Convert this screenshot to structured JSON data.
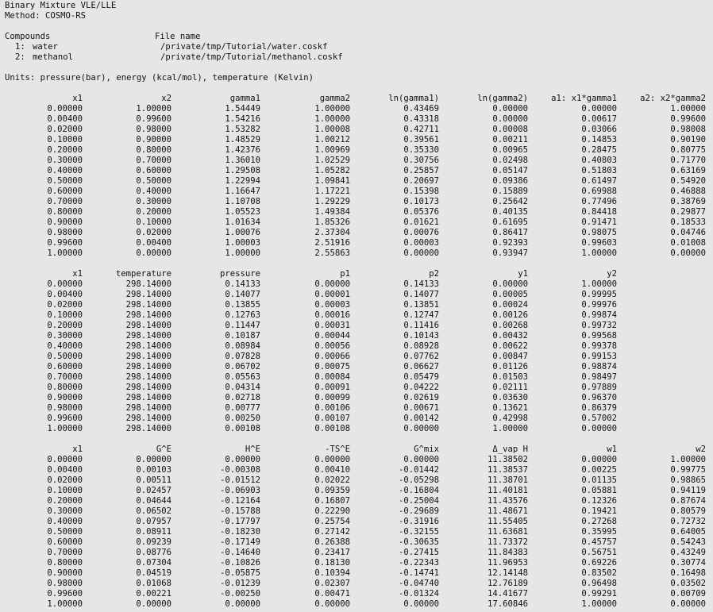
{
  "header": {
    "title": "Binary Mixture VLE/LLE",
    "method": "Method: COSMO-RS",
    "compounds_label": "Compounds",
    "file_name_label": "File name",
    "compounds": [
      {
        "index": "1:",
        "name": "water",
        "file": "/private/tmp/Tutorial/water.coskf"
      },
      {
        "index": "2:",
        "name": "methanol",
        "file": "/private/tmp/Tutorial/methanol.coskf"
      }
    ],
    "units": "Units: pressure(bar), energy (kcal/mol), temperature (Kelvin)"
  },
  "tables": [
    {
      "columns": [
        "x1",
        "x2",
        "gamma1",
        "gamma2",
        "ln(gamma1)",
        "ln(gamma2)",
        "a1: x1*gamma1",
        "a2: x2*gamma2"
      ],
      "rows": [
        [
          "0.00000",
          "1.00000",
          "1.54449",
          "1.00000",
          "0.43469",
          "0.00000",
          "0.00000",
          "1.00000"
        ],
        [
          "0.00400",
          "0.99600",
          "1.54216",
          "1.00000",
          "0.43318",
          "0.00000",
          "0.00617",
          "0.99600"
        ],
        [
          "0.02000",
          "0.98000",
          "1.53282",
          "1.00008",
          "0.42711",
          "0.00008",
          "0.03066",
          "0.98008"
        ],
        [
          "0.10000",
          "0.90000",
          "1.48529",
          "1.00212",
          "0.39561",
          "0.00211",
          "0.14853",
          "0.90190"
        ],
        [
          "0.20000",
          "0.80000",
          "1.42376",
          "1.00969",
          "0.35330",
          "0.00965",
          "0.28475",
          "0.80775"
        ],
        [
          "0.30000",
          "0.70000",
          "1.36010",
          "1.02529",
          "0.30756",
          "0.02498",
          "0.40803",
          "0.71770"
        ],
        [
          "0.40000",
          "0.60000",
          "1.29508",
          "1.05282",
          "0.25857",
          "0.05147",
          "0.51803",
          "0.63169"
        ],
        [
          "0.50000",
          "0.50000",
          "1.22994",
          "1.09841",
          "0.20697",
          "0.09386",
          "0.61497",
          "0.54920"
        ],
        [
          "0.60000",
          "0.40000",
          "1.16647",
          "1.17221",
          "0.15398",
          "0.15889",
          "0.69988",
          "0.46888"
        ],
        [
          "0.70000",
          "0.30000",
          "1.10708",
          "1.29229",
          "0.10173",
          "0.25642",
          "0.77496",
          "0.38769"
        ],
        [
          "0.80000",
          "0.20000",
          "1.05523",
          "1.49384",
          "0.05376",
          "0.40135",
          "0.84418",
          "0.29877"
        ],
        [
          "0.90000",
          "0.10000",
          "1.01634",
          "1.85326",
          "0.01621",
          "0.61695",
          "0.91471",
          "0.18533"
        ],
        [
          "0.98000",
          "0.02000",
          "1.00076",
          "2.37304",
          "0.00076",
          "0.86417",
          "0.98075",
          "0.04746"
        ],
        [
          "0.99600",
          "0.00400",
          "1.00003",
          "2.51916",
          "0.00003",
          "0.92393",
          "0.99603",
          "0.01008"
        ],
        [
          "1.00000",
          "0.00000",
          "1.00000",
          "2.55863",
          "0.00000",
          "0.93947",
          "1.00000",
          "0.00000"
        ]
      ]
    },
    {
      "columns": [
        "x1",
        "temperature",
        "pressure",
        "p1",
        "p2",
        "y1",
        "y2"
      ],
      "rows": [
        [
          "0.00000",
          "298.14000",
          "0.14133",
          "0.00000",
          "0.14133",
          "0.00000",
          "1.00000"
        ],
        [
          "0.00400",
          "298.14000",
          "0.14077",
          "0.00001",
          "0.14077",
          "0.00005",
          "0.99995"
        ],
        [
          "0.02000",
          "298.14000",
          "0.13855",
          "0.00003",
          "0.13851",
          "0.00024",
          "0.99976"
        ],
        [
          "0.10000",
          "298.14000",
          "0.12763",
          "0.00016",
          "0.12747",
          "0.00126",
          "0.99874"
        ],
        [
          "0.20000",
          "298.14000",
          "0.11447",
          "0.00031",
          "0.11416",
          "0.00268",
          "0.99732"
        ],
        [
          "0.30000",
          "298.14000",
          "0.10187",
          "0.00044",
          "0.10143",
          "0.00432",
          "0.99568"
        ],
        [
          "0.40000",
          "298.14000",
          "0.08984",
          "0.00056",
          "0.08928",
          "0.00622",
          "0.99378"
        ],
        [
          "0.50000",
          "298.14000",
          "0.07828",
          "0.00066",
          "0.07762",
          "0.00847",
          "0.99153"
        ],
        [
          "0.60000",
          "298.14000",
          "0.06702",
          "0.00075",
          "0.06627",
          "0.01126",
          "0.98874"
        ],
        [
          "0.70000",
          "298.14000",
          "0.05563",
          "0.00084",
          "0.05479",
          "0.01503",
          "0.98497"
        ],
        [
          "0.80000",
          "298.14000",
          "0.04314",
          "0.00091",
          "0.04222",
          "0.02111",
          "0.97889"
        ],
        [
          "0.90000",
          "298.14000",
          "0.02718",
          "0.00099",
          "0.02619",
          "0.03630",
          "0.96370"
        ],
        [
          "0.98000",
          "298.14000",
          "0.00777",
          "0.00106",
          "0.00671",
          "0.13621",
          "0.86379"
        ],
        [
          "0.99600",
          "298.14000",
          "0.00250",
          "0.00107",
          "0.00142",
          "0.42998",
          "0.57002"
        ],
        [
          "1.00000",
          "298.14000",
          "0.00108",
          "0.00108",
          "0.00000",
          "1.00000",
          "0.00000"
        ]
      ]
    },
    {
      "columns": [
        "x1",
        "G^E",
        "H^E",
        "-TS^E",
        "G^mix",
        "Δ_vap H",
        "w1",
        "w2"
      ],
      "rows": [
        [
          "0.00000",
          "0.00000",
          "0.00000",
          "0.00000",
          "0.00000",
          "11.38502",
          "0.00000",
          "1.00000"
        ],
        [
          "0.00400",
          "0.00103",
          "-0.00308",
          "0.00410",
          "-0.01442",
          "11.38537",
          "0.00225",
          "0.99775"
        ],
        [
          "0.02000",
          "0.00511",
          "-0.01512",
          "0.02022",
          "-0.05298",
          "11.38701",
          "0.01135",
          "0.98865"
        ],
        [
          "0.10000",
          "0.02457",
          "-0.06903",
          "0.09359",
          "-0.16804",
          "11.40181",
          "0.05881",
          "0.94119"
        ],
        [
          "0.20000",
          "0.04644",
          "-0.12164",
          "0.16807",
          "-0.25004",
          "11.43576",
          "0.12326",
          "0.87674"
        ],
        [
          "0.30000",
          "0.06502",
          "-0.15788",
          "0.22290",
          "-0.29689",
          "11.48671",
          "0.19421",
          "0.80579"
        ],
        [
          "0.40000",
          "0.07957",
          "-0.17797",
          "0.25754",
          "-0.31916",
          "11.55405",
          "0.27268",
          "0.72732"
        ],
        [
          "0.50000",
          "0.08911",
          "-0.18230",
          "0.27142",
          "-0.32155",
          "11.63681",
          "0.35995",
          "0.64005"
        ],
        [
          "0.60000",
          "0.09239",
          "-0.17149",
          "0.26388",
          "-0.30635",
          "11.73372",
          "0.45757",
          "0.54243"
        ],
        [
          "0.70000",
          "0.08776",
          "-0.14640",
          "0.23417",
          "-0.27415",
          "11.84383",
          "0.56751",
          "0.43249"
        ],
        [
          "0.80000",
          "0.07304",
          "-0.10826",
          "0.18130",
          "-0.22343",
          "11.96953",
          "0.69226",
          "0.30774"
        ],
        [
          "0.90000",
          "0.04519",
          "-0.05875",
          "0.10394",
          "-0.14741",
          "12.14148",
          "0.83502",
          "0.16498"
        ],
        [
          "0.98000",
          "0.01068",
          "-0.01239",
          "0.02307",
          "-0.04740",
          "12.76189",
          "0.96498",
          "0.03502"
        ],
        [
          "0.99600",
          "0.00221",
          "-0.00250",
          "0.00471",
          "-0.01324",
          "14.41677",
          "0.99291",
          "0.00709"
        ],
        [
          "1.00000",
          "0.00000",
          "0.00000",
          "0.00000",
          "0.00000",
          "17.60846",
          "1.00000",
          "0.00000"
        ]
      ]
    }
  ]
}
